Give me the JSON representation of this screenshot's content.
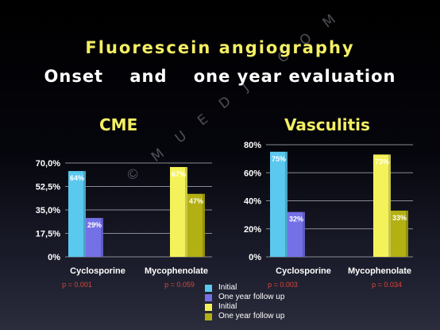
{
  "title": "Fluorescein angiography",
  "subtitle": "Onset    and    one year evaluation",
  "watermark": "© M U E D J . C O M",
  "colors": {
    "initial_cyclosporine": "#5bc8ee",
    "followup_cyclosporine": "#7471e6",
    "initial_mycophenolate": "#f4f25a",
    "followup_mycophenolate": "#b3b013",
    "pvalue": "#d8473b",
    "axis_text": "#ffffff"
  },
  "legend": [
    {
      "label": "Initial",
      "color": "#5bc8ee"
    },
    {
      "label": "One year follow up",
      "color": "#7471e6"
    },
    {
      "label": "Initial",
      "color": "#f4f25a"
    },
    {
      "label": "One year follow up",
      "color": "#b3b013"
    }
  ],
  "chart_data": [
    {
      "type": "bar",
      "title": "CME",
      "categories": [
        "Cyclosporine",
        "Mycophenolate"
      ],
      "series": [
        {
          "values": [
            64,
            67
          ],
          "labels": [
            "64%",
            "67%"
          ]
        },
        {
          "values": [
            29,
            47
          ],
          "labels": [
            "29%",
            "47%"
          ]
        }
      ],
      "p_values": [
        "p = 0.001",
        "p = 0.059"
      ],
      "ylim": [
        0,
        70
      ],
      "yticks": [
        0,
        17.5,
        35,
        52.5,
        70
      ],
      "ytick_labels": [
        "0%",
        "17,5%",
        "35,0%",
        "52,5%",
        "70,0%"
      ],
      "grid": true
    },
    {
      "type": "bar",
      "title": "Vasculitis",
      "categories": [
        "Cyclosporine",
        "Mycophenolate"
      ],
      "series": [
        {
          "values": [
            75,
            73
          ],
          "labels": [
            "75%",
            "73%"
          ]
        },
        {
          "values": [
            32,
            33
          ],
          "labels": [
            "32%",
            "33%"
          ]
        }
      ],
      "p_values": [
        "p = 0.003",
        "p = 0.034"
      ],
      "ylim": [
        0,
        80
      ],
      "yticks": [
        0,
        20,
        40,
        60,
        80
      ],
      "ytick_labels": [
        "0%",
        "20%",
        "40%",
        "60%",
        "80%"
      ],
      "grid": true
    }
  ]
}
